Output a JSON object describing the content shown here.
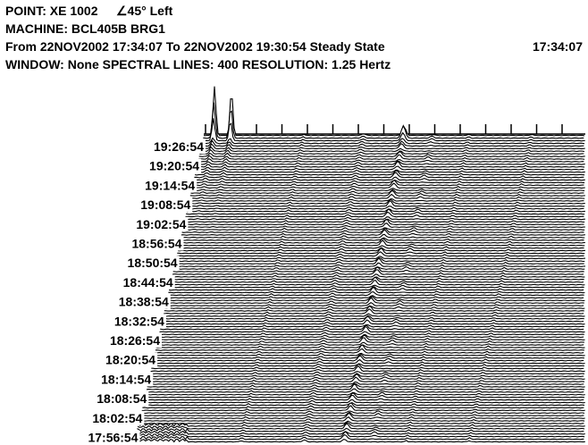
{
  "header": {
    "point": "POINT: XE 1002",
    "direction": "∠45° Left",
    "machine": "MACHINE: BCL405B BRG1",
    "range": "From 22NOV2002 17:34:07 To 22NOV2002 19:30:54 Steady State",
    "range_time": "17:34:07",
    "settings": "WINDOW: None  SPECTRAL LINES: 400  RESOLUTION: 1.25 Hertz"
  },
  "time_labels": [
    "19:26:54",
    "19:20:54",
    "19:14:54",
    "19:08:54",
    "19:02:54",
    "18:56:54",
    "18:50:54",
    "18:44:54",
    "18:38:54",
    "18:32:54",
    "18:26:54",
    "18:20:54",
    "18:14:54",
    "18:08:54",
    "18:02:54",
    "17:56:54"
  ]
}
